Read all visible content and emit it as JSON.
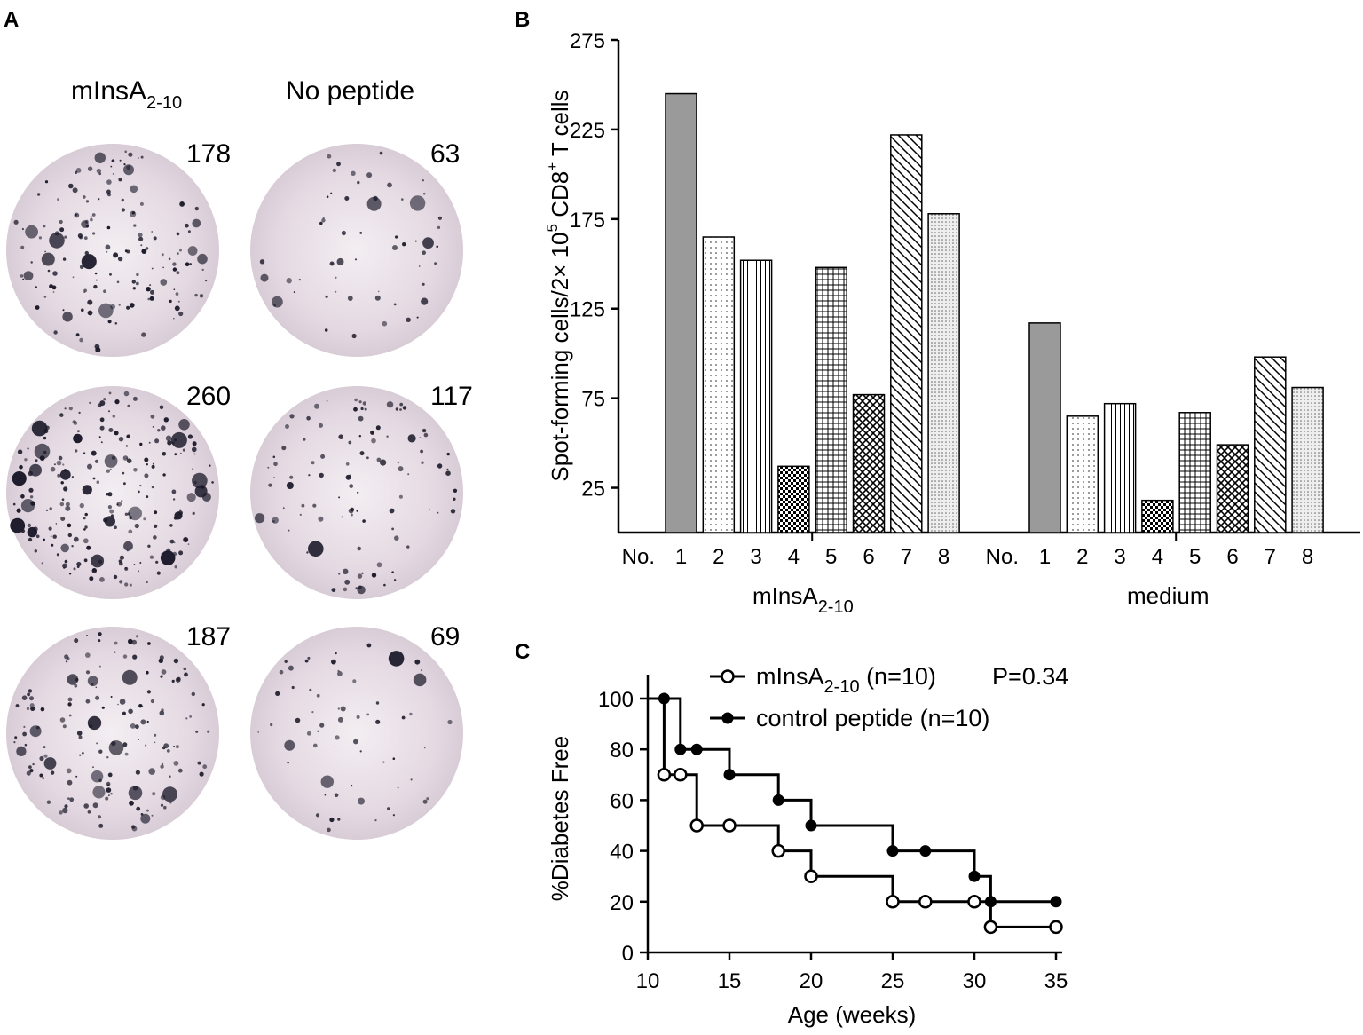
{
  "panel_a": {
    "letter": "A",
    "columns": [
      {
        "title": "mInsA",
        "subscript": "2-10",
        "counts": [
          "178",
          "260",
          "187"
        ]
      },
      {
        "title": "No peptide",
        "subscript": "",
        "counts": [
          "63",
          "117",
          "69"
        ]
      }
    ],
    "well_background": "#e6dde5",
    "spot_color": "#1c1a2a"
  },
  "chart_data": [
    {
      "panel": "B",
      "type": "bar",
      "title": "",
      "ylabel_parts": [
        "Spot-forming cells/2× 10",
        "5",
        " CD8",
        "+",
        " T cells"
      ],
      "yticks": [
        25,
        75,
        125,
        175,
        225,
        275
      ],
      "ylim": [
        0,
        275
      ],
      "categories": [
        "1",
        "2",
        "3",
        "4",
        "5",
        "6",
        "7",
        "8"
      ],
      "category_prefix": "No.",
      "groups": [
        {
          "name": "mInsA",
          "subscript": "2-10",
          "values": [
            245,
            165,
            152,
            37,
            148,
            77,
            222,
            178
          ]
        },
        {
          "name": "medium",
          "subscript": "",
          "values": [
            117,
            65,
            72,
            18,
            67,
            49,
            98,
            81
          ]
        }
      ],
      "patterns": [
        "solid-gray",
        "dots",
        "vertical-lines",
        "checker",
        "grid",
        "crosshatch",
        "diagonal",
        "fine-dots"
      ]
    },
    {
      "panel": "C",
      "type": "line",
      "title": "",
      "xlabel": "Age (weeks)",
      "ylabel": "%Diabetes Free",
      "xlim": [
        10,
        35
      ],
      "ylim": [
        0,
        100
      ],
      "xticks": [
        10,
        15,
        20,
        25,
        30,
        35
      ],
      "yticks": [
        0,
        20,
        40,
        60,
        80,
        100
      ],
      "annotation": "P=0.34",
      "series": [
        {
          "name": "mInsA",
          "subscript": "2-10",
          "suffix": " (n=10)",
          "marker": "open-circle",
          "steps": [
            [
              10,
              100
            ],
            [
              11,
              70
            ],
            [
              13,
              50
            ],
            [
              18,
              40
            ],
            [
              20,
              30
            ],
            [
              25,
              20
            ],
            [
              31,
              10
            ],
            [
              35,
              10
            ]
          ],
          "censored": [
            [
              11,
              70
            ],
            [
              12,
              70
            ],
            [
              13,
              50
            ],
            [
              15,
              50
            ],
            [
              18,
              40
            ],
            [
              20,
              30
            ],
            [
              25,
              20
            ],
            [
              27,
              20
            ],
            [
              30,
              20
            ],
            [
              31,
              10
            ],
            [
              35,
              10
            ]
          ]
        },
        {
          "name": "control peptide",
          "subscript": "",
          "suffix": " (n=10)",
          "marker": "filled-circle",
          "steps": [
            [
              10,
              100
            ],
            [
              12,
              80
            ],
            [
              15,
              70
            ],
            [
              18,
              60
            ],
            [
              20,
              50
            ],
            [
              25,
              40
            ],
            [
              30,
              30
            ],
            [
              31,
              20
            ],
            [
              35,
              20
            ]
          ],
          "censored": [
            [
              11,
              100
            ],
            [
              12,
              80
            ],
            [
              13,
              80
            ],
            [
              15,
              70
            ],
            [
              18,
              60
            ],
            [
              20,
              50
            ],
            [
              25,
              40
            ],
            [
              27,
              40
            ],
            [
              30,
              30
            ],
            [
              31,
              20
            ],
            [
              35,
              20
            ]
          ]
        }
      ]
    }
  ],
  "panel_letters": {
    "b": "B",
    "c": "C"
  }
}
